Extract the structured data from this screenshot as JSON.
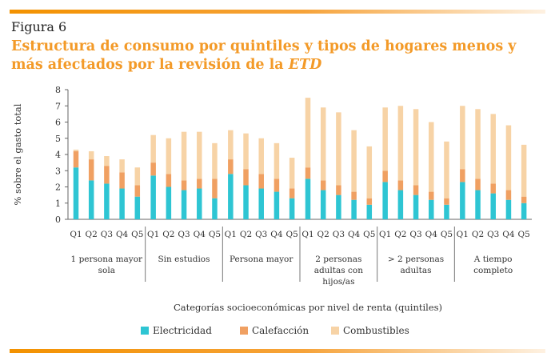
{
  "figure": {
    "label": "Figura 6",
    "title_main": "Estructura de consumo por quintiles y tipos de hogares menos y más afectados por la revisión de la ",
    "title_em": "ETD"
  },
  "colors": {
    "electricidad": "#2ec5d3",
    "calefaccion": "#f0a062",
    "combustibles": "#f7d3a6",
    "rule": "#f39200",
    "title": "#f39a28"
  },
  "chart_data": {
    "type": "bar",
    "stacked": true,
    "ylabel": "% sobre el gasto total",
    "xlabel": "Categorías socioeconómicas por nivel de renta (quintiles)",
    "ylim": [
      0,
      8
    ],
    "yticks": [
      0,
      1,
      2,
      3,
      4,
      5,
      6,
      7,
      8
    ],
    "grid": false,
    "legend_position": "bottom",
    "quintile_labels": [
      "Q1",
      "Q2",
      "Q3",
      "Q4",
      "Q5"
    ],
    "groups": [
      {
        "label_lines": [
          "1 persona mayor",
          "sola"
        ]
      },
      {
        "label_lines": [
          "Sin estudios"
        ]
      },
      {
        "label_lines": [
          "Persona mayor"
        ]
      },
      {
        "label_lines": [
          "2 personas",
          "adultas con",
          "hijos/as"
        ]
      },
      {
        "label_lines": [
          "> 2 personas",
          "adultas"
        ]
      },
      {
        "label_lines": [
          "A tiempo",
          "completo"
        ]
      }
    ],
    "series": [
      {
        "name": "Electricidad",
        "values": [
          [
            3.2,
            2.4,
            2.2,
            1.9,
            1.4
          ],
          [
            2.7,
            2.0,
            1.8,
            1.9,
            1.3
          ],
          [
            2.8,
            2.1,
            1.9,
            1.7,
            1.3
          ],
          [
            2.5,
            1.8,
            1.5,
            1.2,
            0.9
          ],
          [
            2.3,
            1.8,
            1.5,
            1.2,
            0.9
          ],
          [
            2.3,
            1.8,
            1.6,
            1.2,
            1.0
          ]
        ]
      },
      {
        "name": "Calefacción",
        "values": [
          [
            1.0,
            1.3,
            1.1,
            1.0,
            0.7
          ],
          [
            0.8,
            0.8,
            0.6,
            0.6,
            1.2
          ],
          [
            0.9,
            1.0,
            0.9,
            0.8,
            0.6
          ],
          [
            0.7,
            0.6,
            0.6,
            0.5,
            0.4
          ],
          [
            0.7,
            0.6,
            0.6,
            0.5,
            0.4
          ],
          [
            0.8,
            0.7,
            0.6,
            0.6,
            0.4
          ]
        ]
      },
      {
        "name": "Combustibles",
        "values": [
          [
            0.1,
            0.5,
            0.6,
            0.8,
            1.1
          ],
          [
            1.7,
            2.2,
            3.0,
            2.9,
            2.2
          ],
          [
            1.8,
            2.2,
            2.2,
            2.2,
            1.9
          ],
          [
            4.3,
            4.5,
            4.5,
            3.8,
            3.2
          ],
          [
            3.9,
            4.6,
            4.7,
            4.3,
            3.5
          ],
          [
            3.9,
            4.3,
            4.3,
            4.0,
            3.2
          ]
        ]
      }
    ]
  }
}
